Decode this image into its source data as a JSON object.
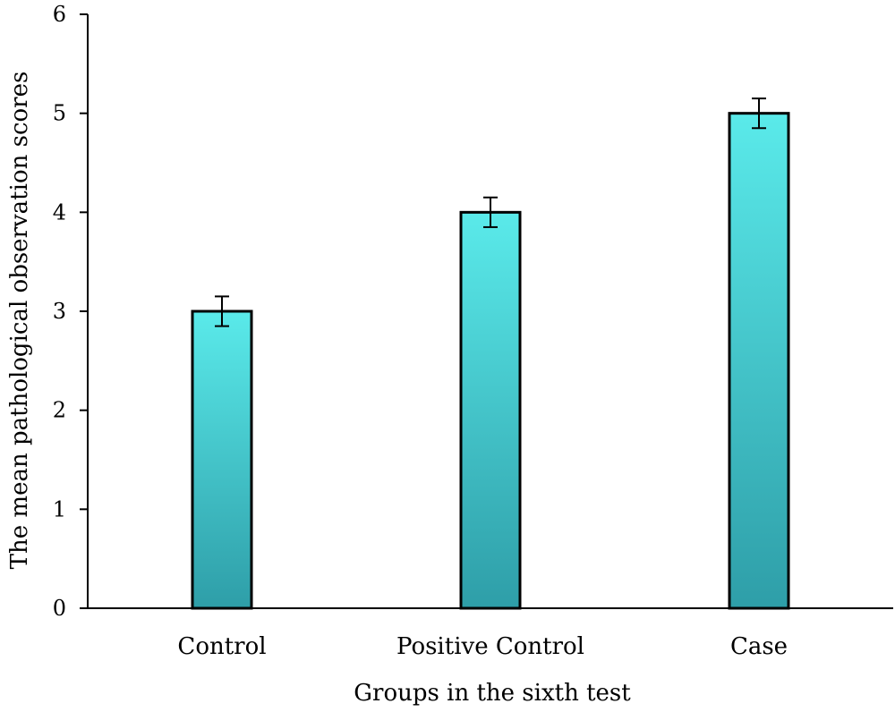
{
  "chart_data": {
    "type": "bar",
    "title": "",
    "xlabel": "Groups in the sixth test",
    "ylabel": "The mean pathological observation scores",
    "categories": [
      "Control",
      "Positive Control",
      "Case"
    ],
    "values": [
      3,
      4,
      5
    ],
    "error": [
      0.15,
      0.15,
      0.15
    ],
    "ylim": [
      0,
      6
    ],
    "yticks": [
      "0",
      "1",
      "2",
      "3",
      "4",
      "5",
      "6"
    ],
    "grid": false,
    "legend": "none",
    "colors": {
      "bar_top": "#5aeaea",
      "bar_bottom": "#2e9ea8",
      "bar_outline": "#000000",
      "axis": "#000000"
    }
  }
}
